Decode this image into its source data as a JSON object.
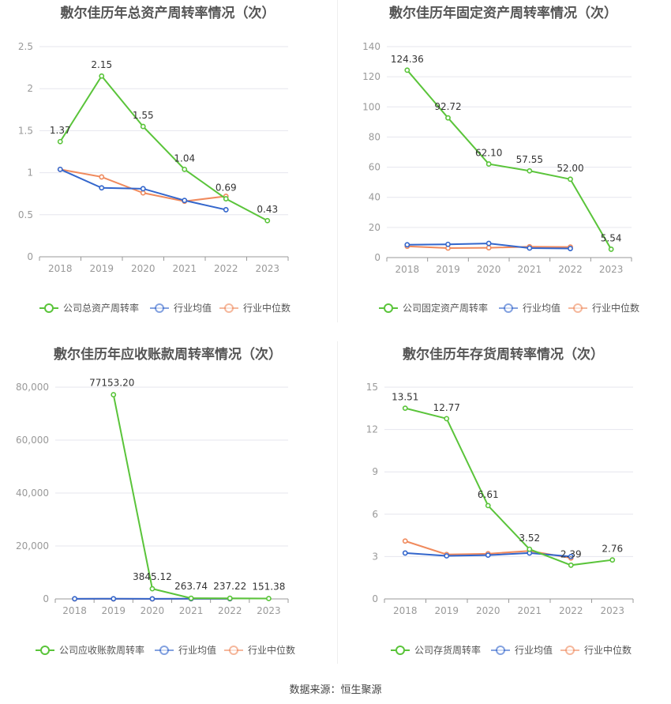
{
  "source": "数据来源：恒生聚源",
  "legend_labels": [
    "行业均值",
    "行业中位数"
  ],
  "colors": {
    "company": "#5ac43a",
    "avg": "#3366cc",
    "median": "#f08a5d",
    "grid": "#e6e6ee",
    "axis": "#999999",
    "tick": "#999999",
    "label": "#333333"
  },
  "chart_data": [
    {
      "type": "line",
      "title": "敷尔佳历年总资产周转率情况（次）",
      "categories": [
        "2018",
        "2019",
        "2020",
        "2021",
        "2022",
        "2023"
      ],
      "ylim": [
        0,
        2.5
      ],
      "yticks": [
        "0",
        "0.5",
        "1",
        "1.5",
        "2",
        "2.5"
      ],
      "series": [
        {
          "name": "公司总资产周转率",
          "values": [
            1.37,
            2.15,
            1.55,
            1.04,
            0.69,
            0.43
          ],
          "labels": [
            "1.37",
            "2.15",
            "1.55",
            "1.04",
            "0.69",
            "0.43"
          ]
        },
        {
          "name": "行业均值",
          "values": [
            1.04,
            0.82,
            0.81,
            0.67,
            0.56,
            null
          ]
        },
        {
          "name": "行业中位数",
          "values": [
            1.04,
            0.95,
            0.76,
            0.66,
            0.72,
            null
          ]
        }
      ]
    },
    {
      "type": "line",
      "title": "敷尔佳历年固定资产周转率情况（次）",
      "categories": [
        "2018",
        "2019",
        "2020",
        "2021",
        "2022",
        "2023"
      ],
      "ylim": [
        0,
        140
      ],
      "yticks": [
        "0",
        "20",
        "40",
        "60",
        "80",
        "100",
        "120",
        "140"
      ],
      "series": [
        {
          "name": "公司固定资产周转率",
          "values": [
            124.36,
            92.72,
            62.1,
            57.55,
            52.0,
            5.54
          ],
          "labels": [
            "124.36",
            "92.72",
            "62.10",
            "57.55",
            "52.00",
            "5.54"
          ]
        },
        {
          "name": "行业均值",
          "values": [
            8.5,
            8.8,
            9.4,
            6.3,
            6.0,
            null
          ]
        },
        {
          "name": "行业中位数",
          "values": [
            7.5,
            6.3,
            6.5,
            7.2,
            7.0,
            null
          ]
        }
      ]
    },
    {
      "type": "line",
      "title": "敷尔佳历年应收账款周转率情况（次）",
      "categories": [
        "2018",
        "2019",
        "2020",
        "2021",
        "2022",
        "2023"
      ],
      "ylim": [
        0,
        80000
      ],
      "yticks": [
        "0",
        "20,000",
        "40,000",
        "60,000",
        "80,000"
      ],
      "series": [
        {
          "name": "公司应收账款周转率",
          "values": [
            null,
            77153.2,
            3845.12,
            263.74,
            237.22,
            151.38
          ],
          "labels": [
            null,
            "77153.20",
            "3845.12",
            "263.74",
            "237.22",
            "151.38"
          ]
        },
        {
          "name": "行业均值",
          "values": [
            50,
            60,
            40,
            70,
            90,
            null
          ]
        },
        {
          "name": "行业中位数",
          "values": [
            20,
            25,
            15,
            30,
            45,
            null
          ]
        }
      ]
    },
    {
      "type": "line",
      "title": "敷尔佳历年存货周转率情况（次）",
      "categories": [
        "2018",
        "2019",
        "2020",
        "2021",
        "2022",
        "2023"
      ],
      "ylim": [
        0,
        15
      ],
      "yticks": [
        "0",
        "3",
        "6",
        "9",
        "12",
        "15"
      ],
      "series": [
        {
          "name": "公司存货周转率",
          "values": [
            13.51,
            12.77,
            6.61,
            3.52,
            2.39,
            2.76
          ],
          "labels": [
            "13.51",
            "12.77",
            "6.61",
            "3.52",
            "2.39",
            "2.76"
          ]
        },
        {
          "name": "行业均值",
          "values": [
            3.25,
            3.05,
            3.1,
            3.25,
            3.0,
            null
          ]
        },
        {
          "name": "行业中位数",
          "values": [
            4.1,
            3.15,
            3.2,
            3.4,
            2.9,
            null
          ]
        }
      ]
    }
  ]
}
